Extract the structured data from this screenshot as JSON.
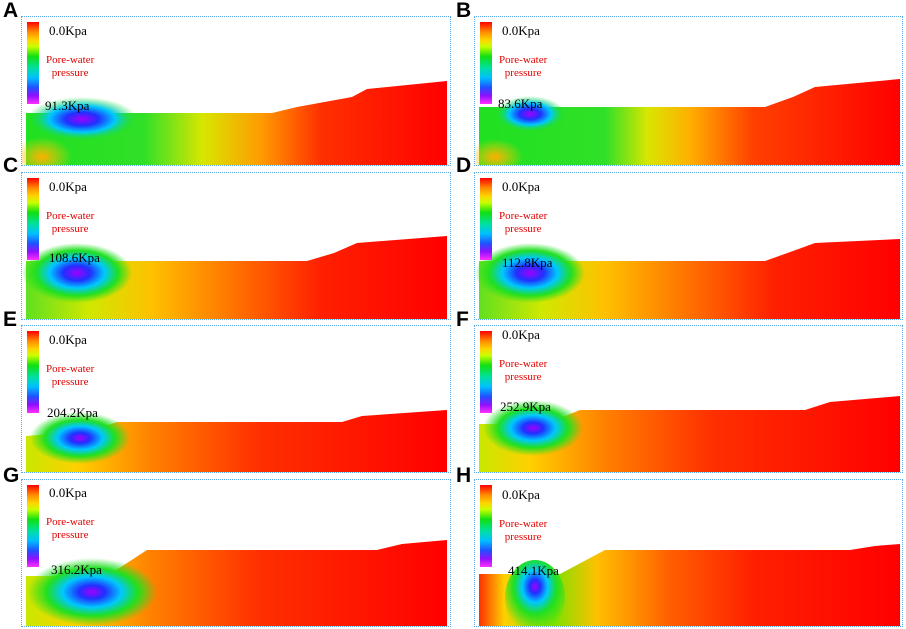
{
  "legend": {
    "top_value": "0.0Kpa",
    "title_line1": "Pore-water",
    "title_line2": "pressure"
  },
  "panels": [
    {
      "letter": "A",
      "min_value": "91.3Kpa"
    },
    {
      "letter": "B",
      "min_value": "83.6Kpa"
    },
    {
      "letter": "C",
      "min_value": "108.6Kpa"
    },
    {
      "letter": "D",
      "min_value": "112.8Kpa"
    },
    {
      "letter": "E",
      "min_value": "204.2Kpa"
    },
    {
      "letter": "F",
      "min_value": "252.9Kpa"
    },
    {
      "letter": "G",
      "min_value": "316.2Kpa"
    },
    {
      "letter": "H",
      "min_value": "414.1Kpa"
    }
  ],
  "colors": {
    "high": "#ff0000",
    "low": "#ff30ff",
    "panel_border": "#56a7e6"
  }
}
